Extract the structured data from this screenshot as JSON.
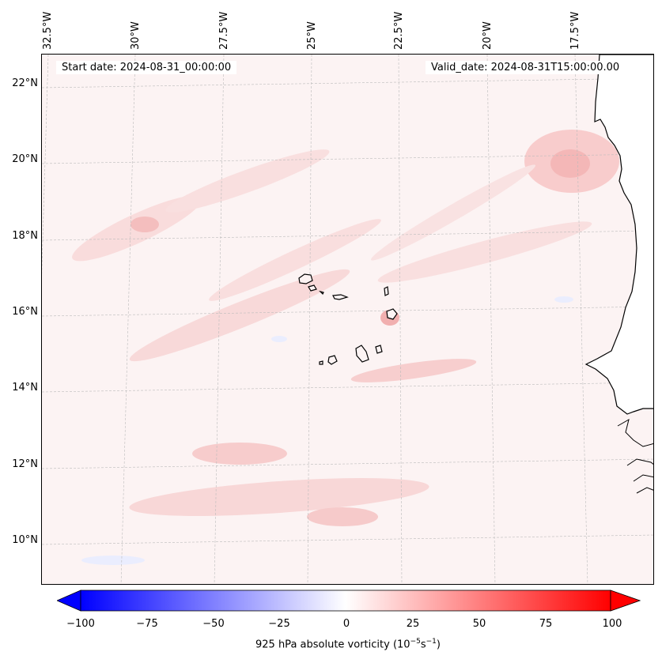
{
  "map": {
    "start_date": "Start date: 2024-08-31_00:00:00",
    "valid_date": "Valid_date: 2024-08-31T15:00:00.00",
    "lon_labels": [
      "32.5°W",
      "30°W",
      "27.5°W",
      "25°W",
      "22.5°W",
      "20°W",
      "17.5°W"
    ],
    "lat_labels": [
      "22°N",
      "20°N",
      "18°N",
      "16°N",
      "14°N",
      "12°N",
      "10°N"
    ],
    "colors": {
      "land_outline": "#000000",
      "gridline": "#bbbbbb",
      "background_field": "#fcf3f3"
    }
  },
  "colorbar": {
    "ticks": [
      "−100",
      "−75",
      "−50",
      "−25",
      "0",
      "25",
      "50",
      "75",
      "100"
    ],
    "min": -100,
    "max": 100,
    "label_main": "925 hPa absolute vorticity (10",
    "label_exp1": "−5",
    "label_mid": "s",
    "label_exp2": "−1",
    "label_end": ")",
    "colors": {
      "negative": "#0000ff",
      "zero": "#ffffff",
      "positive": "#ff0000"
    }
  }
}
